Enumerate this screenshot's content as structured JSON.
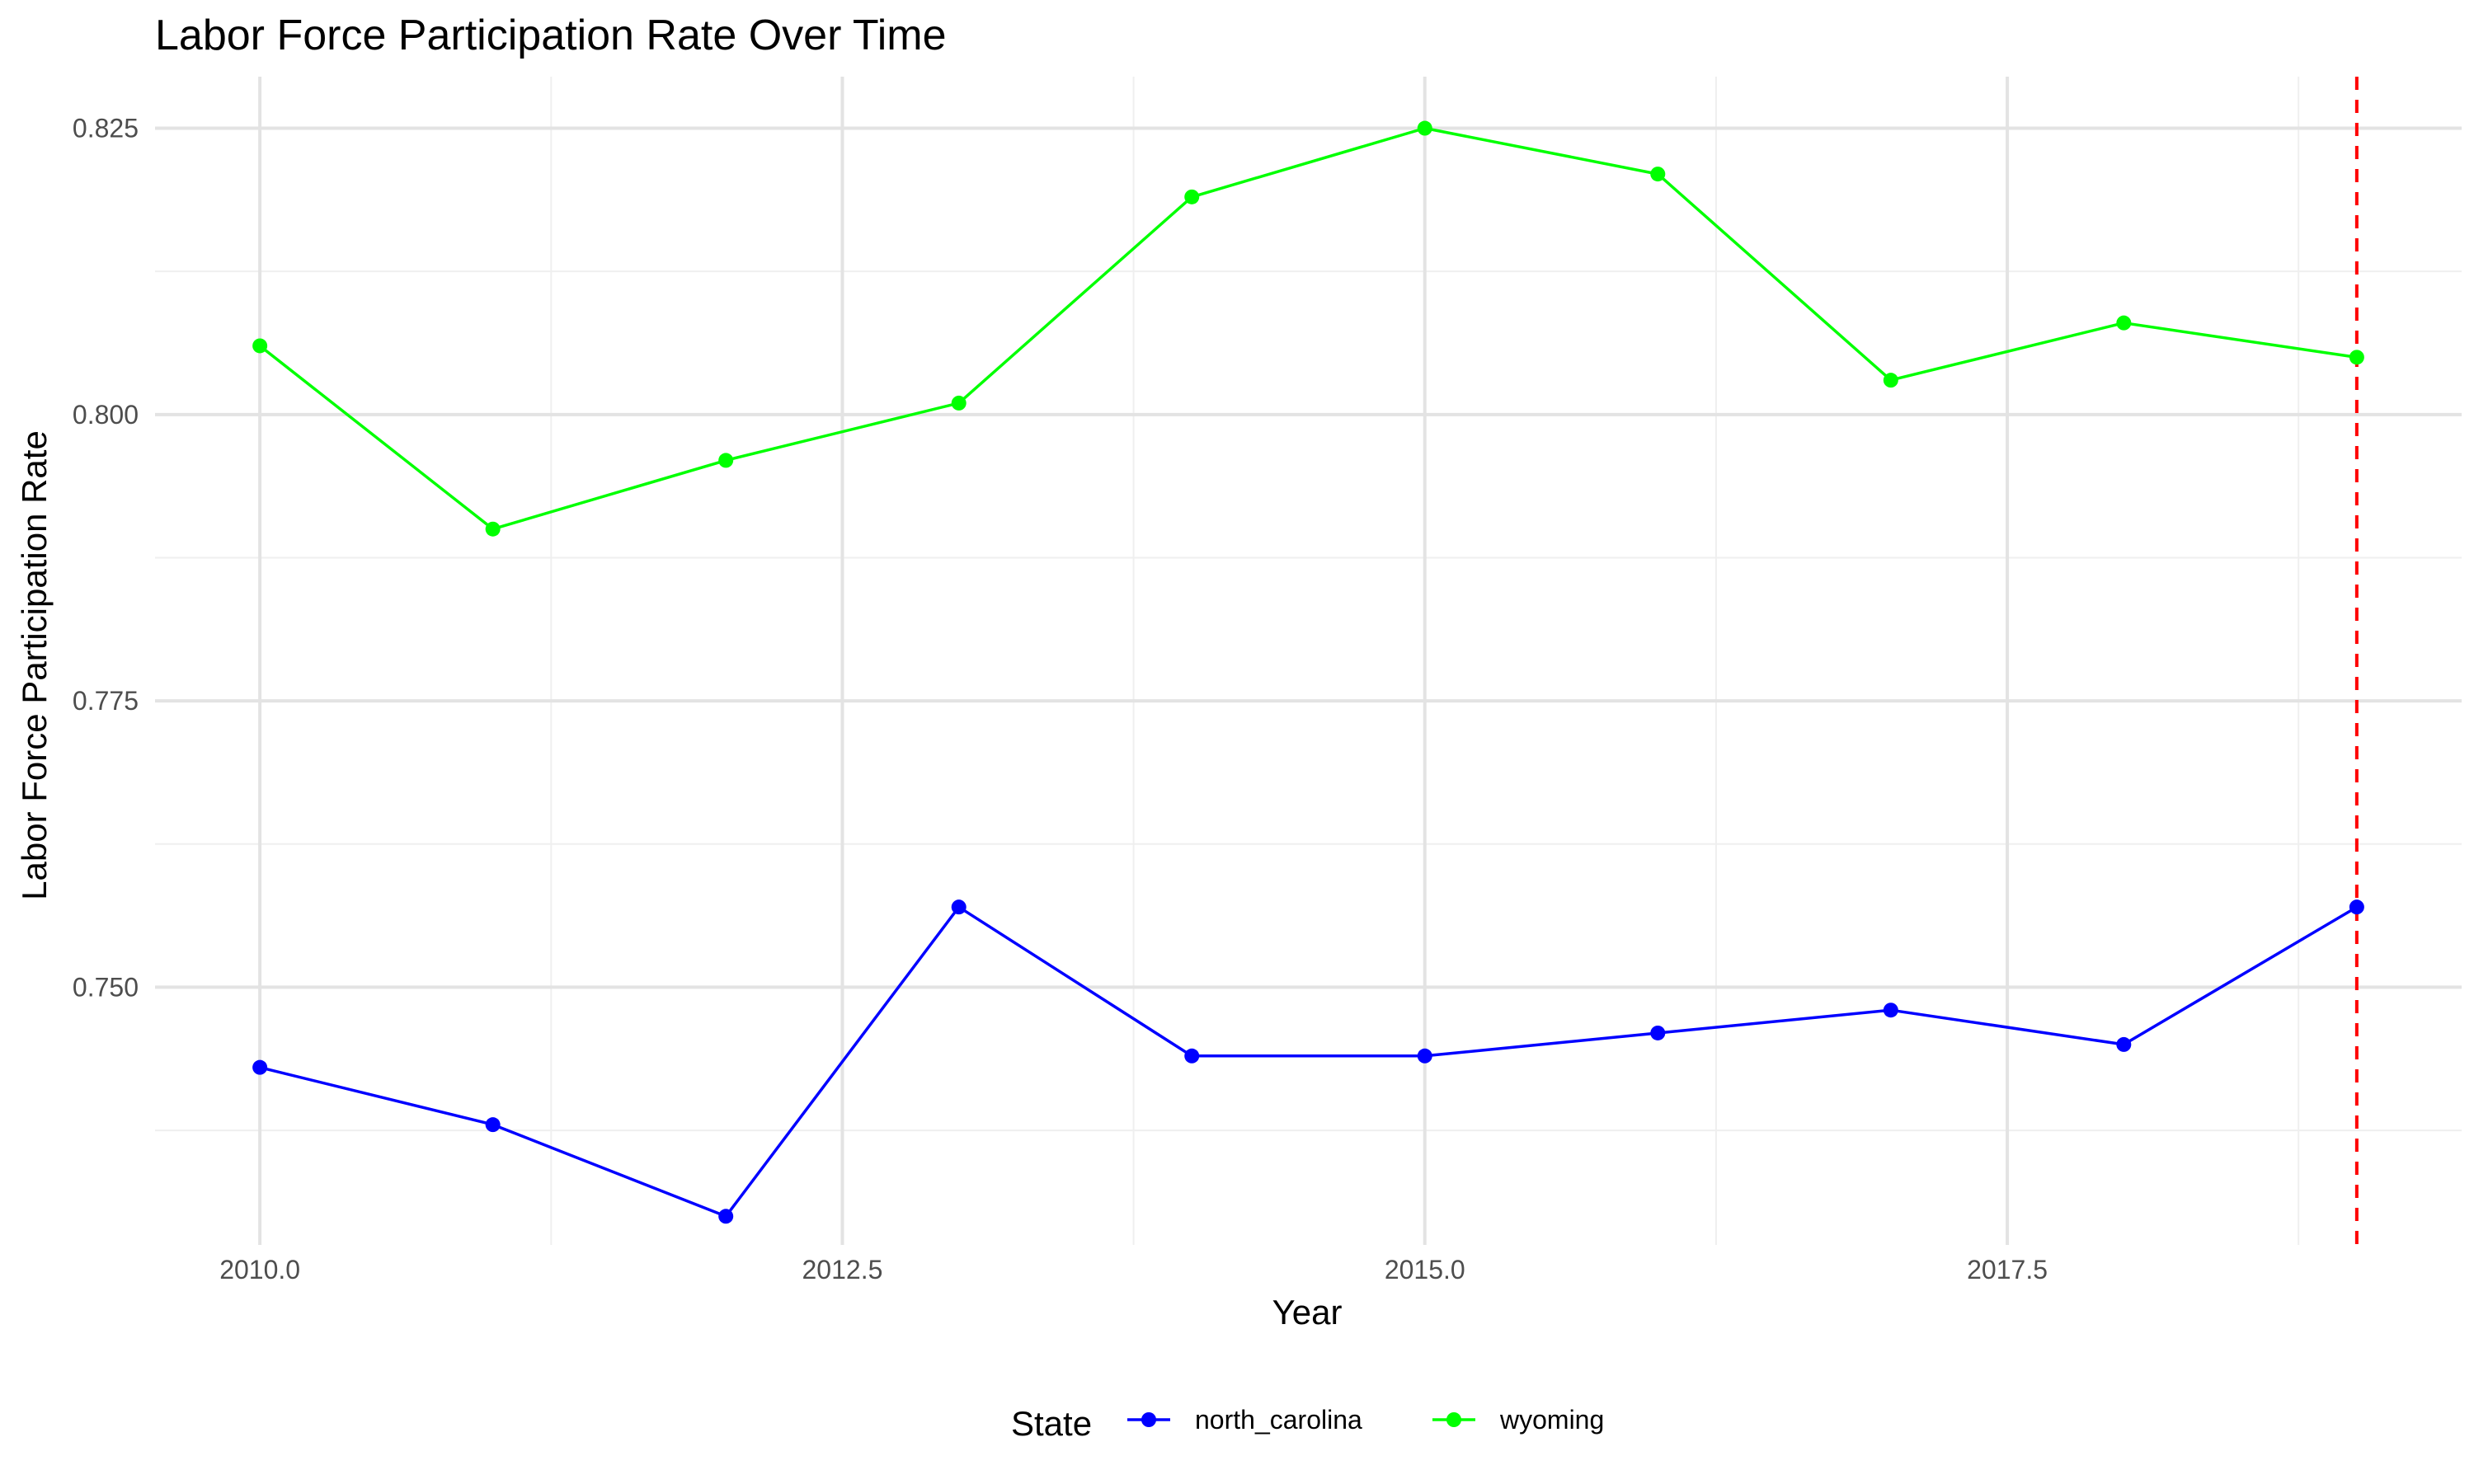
{
  "chart_data": {
    "type": "line",
    "title": "Labor Force Participation Rate Over Time",
    "xlabel": "Year",
    "ylabel": "Labor Force Participation Rate",
    "xlim": [
      2009.55,
      2019.45
    ],
    "ylim": [
      0.7275,
      0.8295
    ],
    "x_ticks": [
      2010,
      2012.5,
      2015,
      2017.5
    ],
    "x_tick_labels": [
      "2010.0",
      "2012.5",
      "2015.0",
      "2017.5"
    ],
    "x_minor_ticks": [
      2011.25,
      2013.75,
      2016.25,
      2018.75
    ],
    "y_ticks": [
      0.75,
      0.775,
      0.8,
      0.825
    ],
    "y_tick_labels": [
      "0.750",
      "0.775",
      "0.800",
      "0.825"
    ],
    "y_minor_ticks": [
      0.7375,
      0.7625,
      0.7875,
      0.8125
    ],
    "x": [
      2010,
      2011,
      2012,
      2013,
      2014,
      2015,
      2016,
      2017,
      2018,
      2019
    ],
    "series": [
      {
        "name": "north_carolina",
        "color": "#0000ff",
        "values": [
          0.743,
          0.738,
          0.73,
          0.757,
          0.744,
          0.744,
          0.746,
          0.748,
          0.745,
          0.757
        ]
      },
      {
        "name": "wyoming",
        "color": "#00ff00",
        "values": [
          0.806,
          0.79,
          0.796,
          0.801,
          0.819,
          0.825,
          0.821,
          0.803,
          0.808,
          0.805
        ]
      }
    ],
    "reference_line": {
      "x": 2019,
      "color": "#ff0000",
      "style": "dashed"
    },
    "legend": {
      "title": "State",
      "position": "bottom"
    },
    "grid": true
  }
}
